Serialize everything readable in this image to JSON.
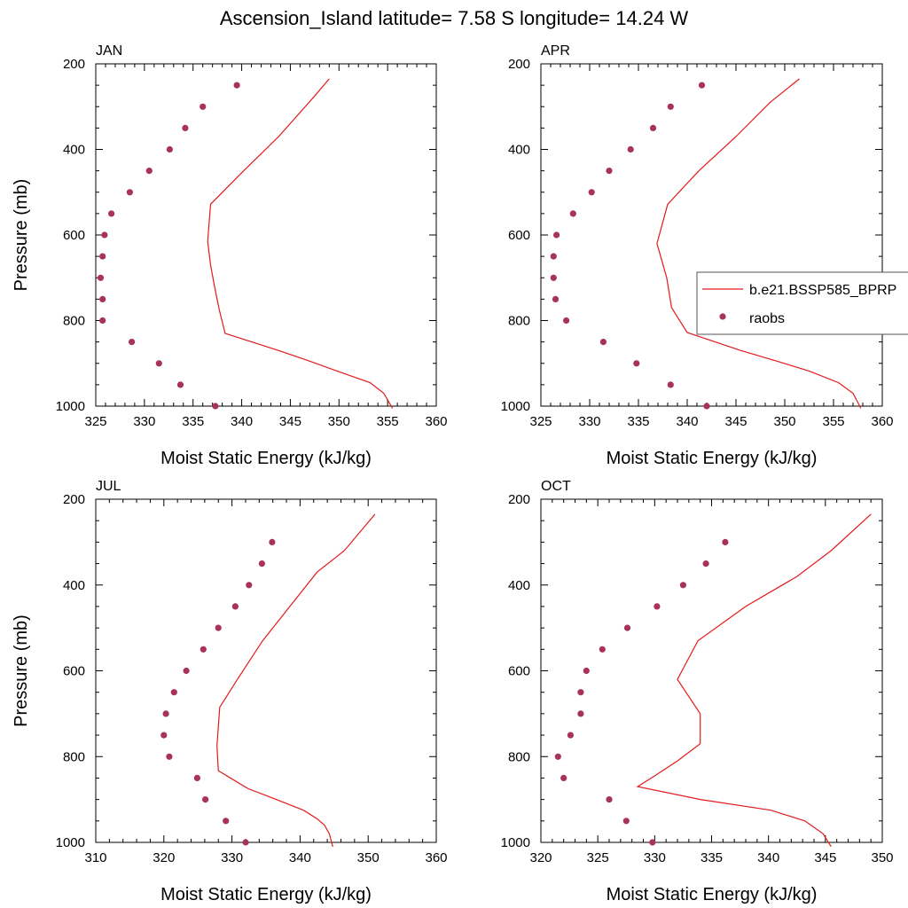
{
  "page_title": "Ascension_Island  latitude= 7.58 S longitude= 14.24 W",
  "legend": {
    "model_label": "b.e21.BSSP585_BPRP",
    "obs_label": "raobs"
  },
  "colors": {
    "model_line": "#e41a1c",
    "obs_marker": "#a8325a",
    "axis": "#000000"
  },
  "chart_data": [
    {
      "type": "scatter",
      "title": "JAN",
      "xlabel": "Moist Static Energy (kJ/kg)",
      "ylabel": "Pressure (mb)",
      "xlim": [
        325,
        360
      ],
      "ylim": [
        200,
        1000
      ],
      "y_inverted": true,
      "xticks": [
        325,
        330,
        335,
        340,
        345,
        350,
        355,
        360
      ],
      "yticks": [
        200,
        400,
        600,
        800,
        1000
      ],
      "series": [
        {
          "name": "b.e21.BSSP585_BPRP",
          "kind": "line",
          "points": [
            [
              355.5,
              1005
            ],
            [
              354.6,
              970
            ],
            [
              353.2,
              945
            ],
            [
              349.8,
              918
            ],
            [
              347.0,
              895
            ],
            [
              343.8,
              870
            ],
            [
              338.3,
              830
            ],
            [
              337.7,
              775
            ],
            [
              337.2,
              720
            ],
            [
              336.8,
              670
            ],
            [
              336.5,
              615
            ],
            [
              336.8,
              528
            ],
            [
              340.2,
              450
            ],
            [
              343.8,
              370
            ],
            [
              347.5,
              275
            ],
            [
              349.0,
              235
            ]
          ]
        },
        {
          "name": "raobs",
          "kind": "scatter",
          "points": [
            [
              337.3,
              1000
            ],
            [
              333.7,
              950
            ],
            [
              331.5,
              900
            ],
            [
              328.7,
              850
            ],
            [
              325.7,
              800
            ],
            [
              325.7,
              750
            ],
            [
              325.5,
              700
            ],
            [
              325.7,
              650
            ],
            [
              325.9,
              600
            ],
            [
              326.6,
              550
            ],
            [
              328.5,
              500
            ],
            [
              330.5,
              450
            ],
            [
              332.6,
              400
            ],
            [
              334.2,
              350
            ],
            [
              336.0,
              300
            ],
            [
              339.5,
              250
            ]
          ]
        }
      ]
    },
    {
      "type": "scatter",
      "title": "APR",
      "xlabel": "Moist Static Energy (kJ/kg)",
      "ylabel": "",
      "xlim": [
        325,
        360
      ],
      "ylim": [
        200,
        1000
      ],
      "y_inverted": true,
      "xticks": [
        325,
        330,
        335,
        340,
        345,
        350,
        355,
        360
      ],
      "yticks": [
        200,
        400,
        600,
        800,
        1000
      ],
      "series": [
        {
          "name": "b.e21.BSSP585_BPRP",
          "kind": "line",
          "points": [
            [
              357.8,
              1005
            ],
            [
              357.0,
              970
            ],
            [
              355.5,
              945
            ],
            [
              352.5,
              918
            ],
            [
              349.2,
              895
            ],
            [
              345.5,
              870
            ],
            [
              340.0,
              828
            ],
            [
              338.4,
              770
            ],
            [
              337.9,
              700
            ],
            [
              336.9,
              620
            ],
            [
              338.0,
              528
            ],
            [
              341.2,
              450
            ],
            [
              345.0,
              370
            ],
            [
              348.5,
              290
            ],
            [
              351.5,
              235
            ]
          ]
        },
        {
          "name": "raobs",
          "kind": "scatter",
          "points": [
            [
              342.0,
              1000
            ],
            [
              338.3,
              950
            ],
            [
              334.8,
              900
            ],
            [
              331.4,
              850
            ],
            [
              327.6,
              800
            ],
            [
              326.5,
              750
            ],
            [
              326.3,
              700
            ],
            [
              326.3,
              650
            ],
            [
              326.6,
              600
            ],
            [
              328.3,
              550
            ],
            [
              330.2,
              500
            ],
            [
              332.0,
              450
            ],
            [
              334.2,
              400
            ],
            [
              336.5,
              350
            ],
            [
              338.3,
              300
            ],
            [
              341.5,
              250
            ]
          ]
        }
      ]
    },
    {
      "type": "scatter",
      "title": "JUL",
      "xlabel": "Moist Static Energy (kJ/kg)",
      "ylabel": "Pressure (mb)",
      "xlim": [
        310,
        360
      ],
      "ylim": [
        200,
        1000
      ],
      "y_inverted": true,
      "xticks": [
        310,
        320,
        330,
        340,
        350,
        360
      ],
      "yticks": [
        200,
        400,
        600,
        800,
        1000
      ],
      "series": [
        {
          "name": "b.e21.BSSP585_BPRP",
          "kind": "line",
          "points": [
            [
              344.8,
              1010
            ],
            [
              344.3,
              980
            ],
            [
              343.6,
              960
            ],
            [
              342.5,
              945
            ],
            [
              340.5,
              925
            ],
            [
              336.5,
              900
            ],
            [
              332.4,
              875
            ],
            [
              328.0,
              833
            ],
            [
              327.8,
              775
            ],
            [
              328.2,
              685
            ],
            [
              330.8,
              620
            ],
            [
              334.5,
              530
            ],
            [
              338.5,
              450
            ],
            [
              342.5,
              370
            ],
            [
              346.5,
              320
            ],
            [
              351.0,
              235
            ]
          ]
        },
        {
          "name": "raobs",
          "kind": "scatter",
          "points": [
            [
              332.0,
              1000
            ],
            [
              329.1,
              950
            ],
            [
              326.1,
              900
            ],
            [
              324.9,
              850
            ],
            [
              320.8,
              800
            ],
            [
              320.0,
              750
            ],
            [
              320.3,
              700
            ],
            [
              321.5,
              650
            ],
            [
              323.3,
              600
            ],
            [
              325.8,
              550
            ],
            [
              328.0,
              500
            ],
            [
              330.5,
              450
            ],
            [
              332.5,
              400
            ],
            [
              334.4,
              350
            ],
            [
              335.9,
              300
            ]
          ]
        }
      ]
    },
    {
      "type": "scatter",
      "title": "OCT",
      "xlabel": "Moist Static Energy (kJ/kg)",
      "ylabel": "",
      "xlim": [
        320,
        350
      ],
      "ylim": [
        200,
        1000
      ],
      "y_inverted": true,
      "xticks": [
        320,
        325,
        330,
        335,
        340,
        345,
        350
      ],
      "yticks": [
        200,
        400,
        600,
        800,
        1000
      ],
      "series": [
        {
          "name": "b.e21.BSSP585_BPRP",
          "kind": "line",
          "points": [
            [
              345.5,
              1010
            ],
            [
              344.8,
              980
            ],
            [
              343.2,
              950
            ],
            [
              340.2,
              925
            ],
            [
              334.0,
              900
            ],
            [
              328.5,
              870
            ],
            [
              330.0,
              845
            ],
            [
              332.0,
              810
            ],
            [
              334.0,
              770
            ],
            [
              334.0,
              700
            ],
            [
              332.0,
              620
            ],
            [
              333.8,
              530
            ],
            [
              338.0,
              450
            ],
            [
              342.5,
              380
            ],
            [
              345.5,
              320
            ],
            [
              349.0,
              235
            ]
          ]
        },
        {
          "name": "raobs",
          "kind": "scatter",
          "points": [
            [
              329.8,
              1000
            ],
            [
              327.5,
              950
            ],
            [
              326.0,
              900
            ],
            [
              322.0,
              850
            ],
            [
              321.5,
              800
            ],
            [
              322.6,
              750
            ],
            [
              323.5,
              700
            ],
            [
              323.5,
              650
            ],
            [
              324.0,
              600
            ],
            [
              325.4,
              550
            ],
            [
              327.6,
              500
            ],
            [
              330.2,
              450
            ],
            [
              332.5,
              400
            ],
            [
              334.5,
              350
            ],
            [
              336.2,
              300
            ]
          ]
        }
      ]
    }
  ]
}
